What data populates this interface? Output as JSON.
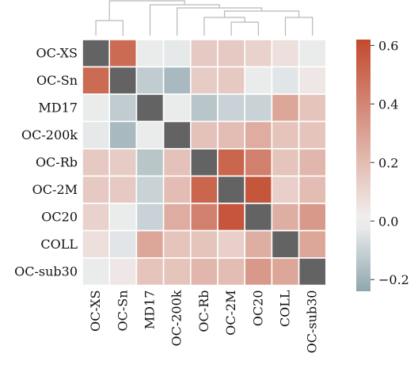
{
  "chart_data": {
    "type": "heatmap",
    "title": "",
    "row_labels": [
      "OC-XS",
      "OC-Sn",
      "MD17",
      "OC-200k",
      "OC-Rb",
      "OC-2M",
      "OC20",
      "COLL",
      "OC-sub30"
    ],
    "col_labels": [
      "OC-XS",
      "OC-Sn",
      "MD17",
      "OC-200k",
      "OC-Rb",
      "OC-2M",
      "OC20",
      "COLL",
      "OC-sub30"
    ],
    "values": [
      [
        null,
        0.5,
        -0.02,
        -0.03,
        0.15,
        0.15,
        0.12,
        0.07,
        -0.02
      ],
      [
        0.5,
        null,
        -0.12,
        -0.18,
        0.14,
        0.15,
        -0.02,
        -0.04,
        0.04
      ],
      [
        -0.02,
        -0.12,
        null,
        -0.02,
        -0.14,
        -0.1,
        -0.1,
        0.28,
        0.17
      ],
      [
        -0.03,
        -0.18,
        -0.02,
        null,
        0.18,
        0.2,
        0.26,
        0.17,
        0.17
      ],
      [
        0.15,
        0.14,
        -0.14,
        0.18,
        null,
        0.52,
        0.42,
        0.17,
        0.22
      ],
      [
        0.15,
        0.15,
        -0.1,
        0.2,
        0.52,
        null,
        0.58,
        0.13,
        0.2
      ],
      [
        0.12,
        -0.02,
        -0.1,
        0.26,
        0.42,
        0.58,
        null,
        0.25,
        0.33
      ],
      [
        0.07,
        -0.04,
        0.28,
        0.17,
        0.17,
        0.13,
        0.25,
        null,
        0.28
      ],
      [
        -0.02,
        0.04,
        0.17,
        0.17,
        0.22,
        0.2,
        0.33,
        0.28,
        null
      ]
    ],
    "diagonal_color": "#636363",
    "colorbar": {
      "vmin": -0.24,
      "vmax": 0.62,
      "ticks": [
        0.6,
        0.4,
        0.2,
        0.0,
        -0.2
      ],
      "tick_labels": [
        "0.6",
        "0.4",
        "0.2",
        "0.0",
        "−0.2"
      ]
    },
    "colormap": {
      "low": "#8fa6ae",
      "mid": "#f2f2f2",
      "high": "#c24a2e"
    },
    "dendrogram_color": "#b8b8b8",
    "grid": "white lines between cells",
    "legend": "colorbar at right"
  }
}
